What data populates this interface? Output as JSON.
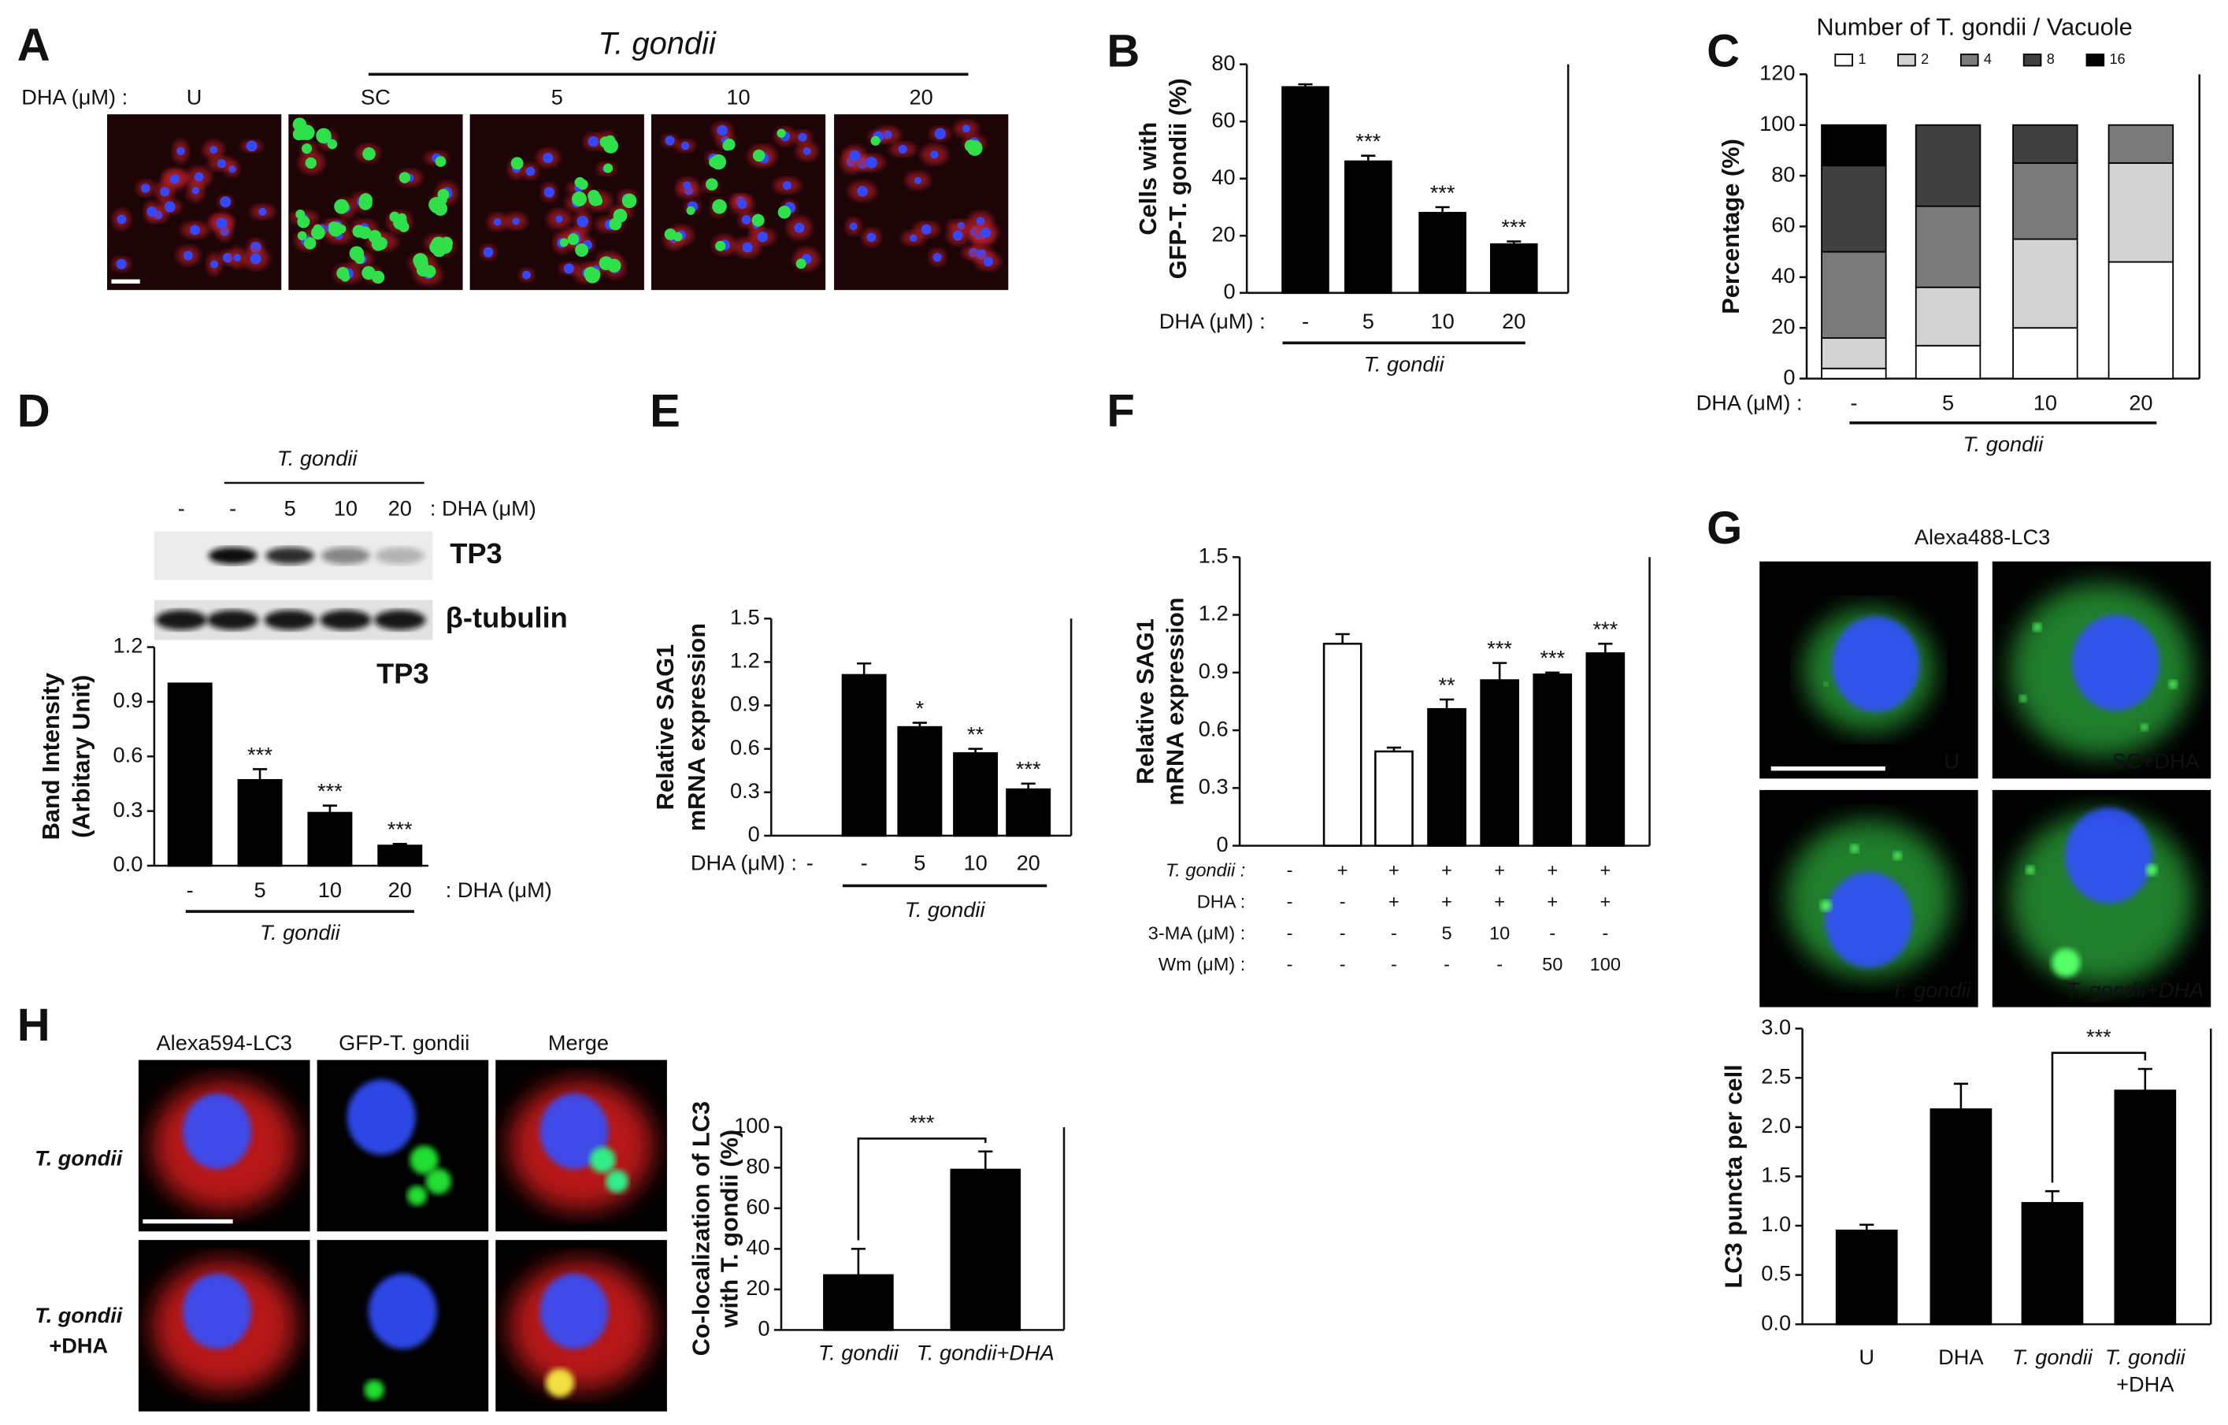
{
  "panel_a": {
    "letter": "A",
    "group_label": "T. gondii",
    "xlabel": "DHA (μM) :",
    "conditions": [
      "U",
      "SC",
      "5",
      "10",
      "20"
    ]
  },
  "blot": {
    "group_label": "T. gondii",
    "lanes": [
      "-",
      "-",
      "5",
      "10",
      "20"
    ],
    "lane_suffix": ": DHA (μM)",
    "bands": [
      "TP3",
      "β-tubulin"
    ]
  },
  "panel_g_images": {
    "title": "Alexa488-LC3",
    "labels": [
      "U",
      "SC+DHA",
      "T. gondii",
      "T. gondii+DHA"
    ]
  },
  "panel_h_images": {
    "letter": "H",
    "columns": [
      "Alexa594-LC3",
      "GFP-T. gondii",
      "Merge"
    ],
    "rows": [
      [
        "T. gondii"
      ],
      [
        "T. gondii",
        "+DHA"
      ]
    ]
  },
  "chart_data": [
    {
      "type": "bar",
      "panel": "B",
      "categories": [
        "-",
        "5",
        "10",
        "20"
      ],
      "values": [
        72,
        46,
        28,
        17
      ],
      "errors": [
        1,
        2,
        2,
        1
      ],
      "significance": [
        null,
        "***",
        "***",
        "***"
      ],
      "color": "#000000",
      "ylim": [
        0,
        80
      ],
      "yticks": [
        0,
        20,
        40,
        60,
        80
      ],
      "ylabel": [
        "Cells with",
        "GFP-T. gondii (%)"
      ],
      "xlabel": "DHA (μM) :",
      "group_label": "T. gondii"
    },
    {
      "type": "stacked_bar",
      "panel": "C",
      "title": "Number of T. gondii / Vacuole",
      "categories": [
        "-",
        "5",
        "10",
        "20"
      ],
      "series": [
        {
          "name": "1",
          "color": "#ffffff",
          "values": [
            4,
            13,
            20,
            46
          ]
        },
        {
          "name": "2",
          "color": "#d2d2d2",
          "values": [
            12,
            23,
            35,
            39
          ]
        },
        {
          "name": "4",
          "color": "#7a7a7a",
          "values": [
            34,
            32,
            30,
            15
          ]
        },
        {
          "name": "8",
          "color": "#404040",
          "values": [
            34,
            32,
            15,
            0
          ]
        },
        {
          "name": "16",
          "color": "#000000",
          "values": [
            16,
            0,
            0,
            0
          ]
        }
      ],
      "ylim": [
        0,
        120
      ],
      "yticks": [
        0,
        20,
        40,
        60,
        80,
        100,
        120
      ],
      "ylabel": [
        "Percentage (%)"
      ],
      "xlabel": "DHA (μM) :",
      "group_label": "T. gondii"
    },
    {
      "type": "bar",
      "panel": "D",
      "annotation": "TP3",
      "categories": [
        "-",
        "5",
        "10",
        "20"
      ],
      "values": [
        1.0,
        0.47,
        0.29,
        0.11
      ],
      "errors": [
        0,
        0.06,
        0.04,
        0.01
      ],
      "significance": [
        null,
        "***",
        "***",
        "***"
      ],
      "color": "#000000",
      "ylim": [
        0,
        1.2
      ],
      "yticks": [
        {
          "value": 0,
          "label": "0.0"
        },
        0.3,
        0.6,
        0.9,
        1.2
      ],
      "ylabel": [
        "Band Intensity",
        "(Arbitary Unit)"
      ],
      "xlabel": ": DHA (μM)",
      "group_label": "T. gondii"
    },
    {
      "type": "bar",
      "panel": "E",
      "categories": [
        "-",
        "-",
        "5",
        "10",
        "20"
      ],
      "values": [
        null,
        1.11,
        0.75,
        0.57,
        0.32
      ],
      "errors": [
        null,
        0.08,
        0.03,
        0.03,
        0.04
      ],
      "significance": [
        null,
        null,
        "*",
        "**",
        "***"
      ],
      "color": "#000000",
      "ylim": [
        0,
        1.5
      ],
      "yticks": [
        0,
        0.3,
        0.6,
        0.9,
        1.2,
        1.5
      ],
      "ylabel": [
        "Relative SAG1",
        "mRNA expression"
      ],
      "xlabel": "DHA (μM) :",
      "group_label": "T. gondii"
    },
    {
      "type": "bar",
      "panel": "F",
      "values": [
        null,
        1.05,
        0.49,
        0.71,
        0.86,
        0.89,
        1.0
      ],
      "errors": [
        null,
        0.05,
        0.02,
        0.05,
        0.09,
        0.01,
        0.05
      ],
      "significance": [
        null,
        null,
        null,
        "**",
        "***",
        "***",
        "***"
      ],
      "colors": [
        "#ffffff",
        "#ffffff",
        "#ffffff",
        "#000000",
        "#000000",
        "#000000",
        "#000000"
      ],
      "ylim": [
        0,
        1.5
      ],
      "yticks": [
        0,
        0.3,
        0.6,
        0.9,
        1.2,
        1.5
      ],
      "ylabel": [
        "Relative SAG1",
        "mRNA expression"
      ],
      "conditions": [
        {
          "label": "T. gondii :",
          "cells": [
            "-",
            "+",
            "+",
            "+",
            "+",
            "+",
            "+"
          ]
        },
        {
          "label": "DHA :",
          "cells": [
            "-",
            "-",
            "+",
            "+",
            "+",
            "+",
            "+"
          ]
        },
        {
          "label": "3-MA (μM) :",
          "cells": [
            "-",
            "-",
            "-",
            "5",
            "10",
            "-",
            "-"
          ]
        },
        {
          "label": "Wm (μM) :",
          "cells": [
            "-",
            "-",
            "-",
            "-",
            "-",
            "50",
            "100"
          ]
        }
      ]
    },
    {
      "type": "bar",
      "panel": "G",
      "categories": [
        "U",
        "DHA",
        "T. gondii",
        [
          "T. gondii",
          "+DHA"
        ]
      ],
      "values": [
        0.95,
        2.18,
        1.23,
        2.37
      ],
      "errors": [
        0.06,
        0.26,
        0.12,
        0.22
      ],
      "bracket_label": "***",
      "color": "#000000",
      "ylim": [
        0,
        3
      ],
      "yticks": [
        {
          "value": 0,
          "label": "0.0"
        },
        0.5,
        {
          "value": 1,
          "label": "1.0"
        },
        1.5,
        {
          "value": 2,
          "label": "2.0"
        },
        2.5,
        {
          "value": 3,
          "label": "3.0"
        }
      ],
      "ylabel": [
        "LC3 puncta per cell"
      ]
    },
    {
      "type": "bar",
      "categories": [
        "T. gondii",
        "T. gondii+DHA"
      ],
      "values": [
        27,
        79
      ],
      "errors": [
        13,
        9
      ],
      "bracket_label": "***",
      "color": "#000000",
      "ylim": [
        0,
        100
      ],
      "yticks": [
        0,
        20,
        40,
        60,
        80,
        100
      ],
      "ylabel": [
        "Co-localization of LC3",
        "with T. gondii (%)"
      ]
    }
  ]
}
